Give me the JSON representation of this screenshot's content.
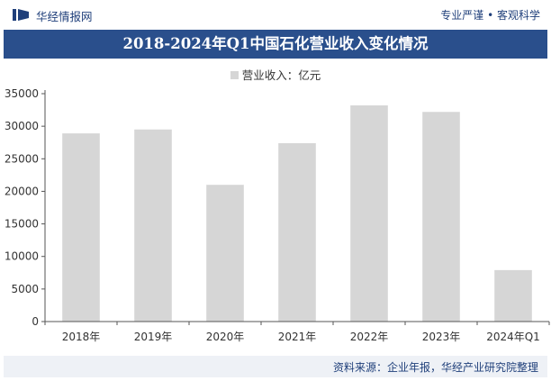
{
  "header": {
    "brand": "华经情报网",
    "slogan": "专业严谨 • 客观科学"
  },
  "chart_data": {
    "type": "bar",
    "title": "2018-2024年Q1中国石化营业收入变化情况",
    "legend": [
      "营业收入：亿元"
    ],
    "legend_position": "top-center",
    "categories": [
      "2018年",
      "2019年",
      "2020年",
      "2021年",
      "2022年",
      "2023年",
      "2024年Q1"
    ],
    "series": [
      {
        "name": "营业收入：亿元",
        "values": [
          28900,
          29500,
          21000,
          27400,
          33200,
          32200,
          7900
        ]
      }
    ],
    "ylim": [
      0,
      35000
    ],
    "yticks": [
      0,
      5000,
      10000,
      15000,
      20000,
      25000,
      30000,
      35000
    ],
    "grid": false,
    "bar_color": "#d6d6d6"
  },
  "footer": {
    "source": "资料来源：企业年报，华经产业研究院整理"
  }
}
